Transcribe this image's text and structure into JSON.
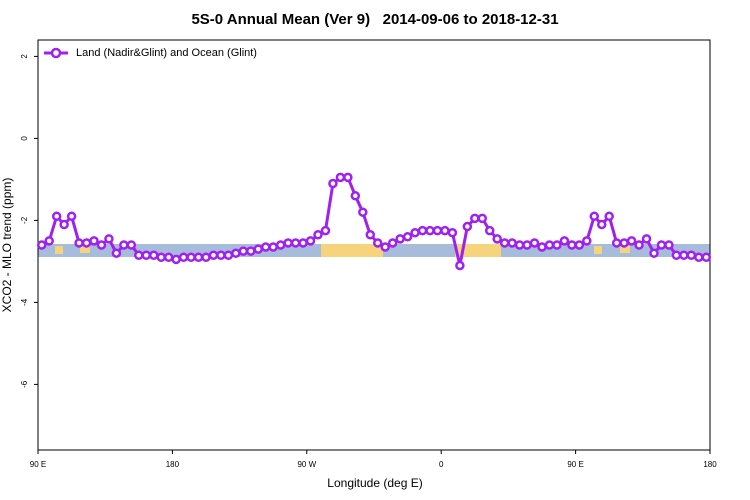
{
  "chart_data": {
    "type": "line",
    "title": "5S-0 Annual Mean (Ver 9)   2014-09-06 to 2018-12-31",
    "x_label": "Longitude (deg E)",
    "y_label": "XCO2 - MLO trend (ppm)",
    "x": [
      92.5,
      97.5,
      102.5,
      107.5,
      112.5,
      117.5,
      122.5,
      127.5,
      132.5,
      137.5,
      142.5,
      147.5,
      152.5,
      157.5,
      162.5,
      167.5,
      172.5,
      177.5,
      182.5,
      187.5,
      192.5,
      197.5,
      202.5,
      207.5,
      212.5,
      217.5,
      222.5,
      227.5,
      232.5,
      237.5,
      242.5,
      247.5,
      252.5,
      257.5,
      262.5,
      267.5,
      272.5,
      277.5,
      282.5,
      287.5,
      292.5,
      297.5,
      302.5,
      307.5,
      312.5,
      317.5,
      322.5,
      327.5,
      332.5,
      337.5,
      342.5,
      347.5,
      352.5,
      357.5,
      362.5,
      367.5,
      372.5,
      377.5,
      382.5,
      387.5,
      392.5,
      397.5,
      402.5,
      407.5,
      412.5,
      417.5,
      422.5,
      427.5,
      432.5,
      437.5,
      442.5,
      447.5,
      452.5,
      457.5,
      462.5,
      467.5,
      472.5,
      477.5,
      482.5,
      487.5,
      492.5,
      497.5,
      502.5,
      507.5,
      512.5,
      517.5,
      522.5,
      527.5,
      532.5,
      537.5
    ],
    "series": [
      {
        "name": "Land (Nadir&Glint) and Ocean (Glint)",
        "color": "#a020f0",
        "values": [
          -2.6,
          -2.5,
          -1.9,
          -2.1,
          -1.9,
          -2.55,
          -2.55,
          -2.5,
          -2.6,
          -2.45,
          -2.8,
          -2.6,
          -2.6,
          -2.85,
          -2.85,
          -2.85,
          -2.9,
          -2.9,
          -2.95,
          -2.9,
          -2.9,
          -2.9,
          -2.9,
          -2.85,
          -2.85,
          -2.85,
          -2.8,
          -2.75,
          -2.75,
          -2.7,
          -2.65,
          -2.65,
          -2.6,
          -2.55,
          -2.55,
          -2.55,
          -2.5,
          -2.35,
          -2.25,
          -1.1,
          -0.95,
          -0.95,
          -1.4,
          -1.8,
          -2.35,
          -2.55,
          -2.65,
          -2.55,
          -2.45,
          -2.4,
          -2.3,
          -2.25,
          -2.25,
          -2.25,
          -2.25,
          -2.3,
          -3.1,
          -2.15,
          -1.95,
          -1.95,
          -2.25,
          -2.45,
          -2.55,
          -2.55,
          -2.6,
          -2.6,
          -2.55,
          -2.65,
          -2.6,
          -2.6,
          -2.5,
          -2.6,
          -2.6,
          -2.5,
          -1.9,
          -2.1,
          -1.9,
          -2.55,
          -2.55,
          -2.5,
          -2.6,
          -2.45,
          -2.8,
          -2.6,
          -2.6,
          -2.85,
          -2.85,
          -2.85,
          -2.9,
          -2.9
        ]
      }
    ],
    "xlim": [
      90,
      540
    ],
    "xticks": [
      {
        "value": 90,
        "label": "90 E"
      },
      180,
      {
        "value": 270,
        "label": "90 W"
      },
      {
        "value": 360,
        "label": "0"
      },
      {
        "value": 450,
        "label": "90 E"
      },
      {
        "value": 540,
        "label": "180"
      }
    ],
    "ylim": [
      -7.6,
      2.4
    ],
    "yticks": [
      2,
      0,
      -2,
      -4,
      -6
    ],
    "legend": "top-left"
  }
}
